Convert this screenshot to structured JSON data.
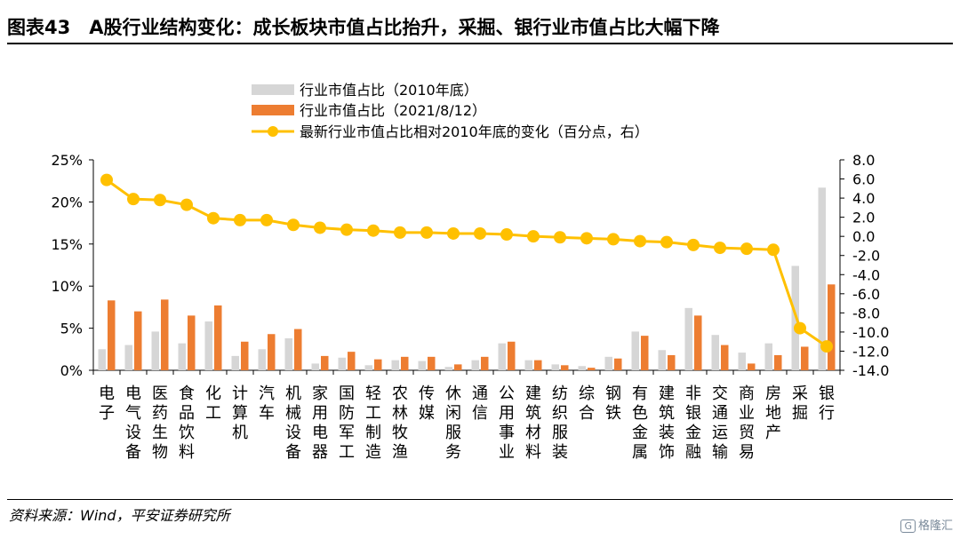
{
  "title": "图表43　A股行业结构变化：成长板块市值占比抬升，采掘、银行业市值占比大幅下降",
  "source": "资料来源：Wind，平安证券研究所",
  "watermark": {
    "icon": "G",
    "text": "格隆汇"
  },
  "colors": {
    "series2010": "#d6d6d6",
    "series2021": "#ed7d31",
    "change": "#ffc000",
    "axis": "#000000"
  },
  "chart_data": {
    "type": "bar",
    "categories": [
      "电子",
      "电气设备",
      "医药生物",
      "食品饮料",
      "化工",
      "计算机",
      "汽车",
      "机械设备",
      "家用电器",
      "国防军工",
      "轻工制造",
      "农林牧渔",
      "传媒",
      "休闲服务",
      "通信",
      "公用事业",
      "建筑材料",
      "纺织服装",
      "综合",
      "钢铁",
      "有色金属",
      "建筑装饰",
      "非银金融",
      "交通运输",
      "商业贸易",
      "房地产",
      "采掘",
      "银行"
    ],
    "series": [
      {
        "name": "行业市值占比（2010年底）",
        "type": "bar",
        "axis": "left",
        "values": [
          2.5,
          3.0,
          4.6,
          3.2,
          5.8,
          1.7,
          2.5,
          3.8,
          0.8,
          1.5,
          0.6,
          1.2,
          1.1,
          0.4,
          1.2,
          3.2,
          1.2,
          0.7,
          0.5,
          1.6,
          4.6,
          2.4,
          7.4,
          4.2,
          2.1,
          3.2,
          12.4,
          21.7
        ]
      },
      {
        "name": "行业市值占比（2021/8/12）",
        "type": "bar",
        "axis": "left",
        "values": [
          8.3,
          7.0,
          8.4,
          6.5,
          7.7,
          3.4,
          4.3,
          4.9,
          1.7,
          2.2,
          1.3,
          1.6,
          1.6,
          0.7,
          1.6,
          3.4,
          1.2,
          0.6,
          0.3,
          1.4,
          4.1,
          1.8,
          6.5,
          3.0,
          0.8,
          1.8,
          2.8,
          10.2
        ]
      },
      {
        "name": "最新行业市值占比相对2010年底的变化（百分点，右）",
        "type": "line",
        "axis": "right",
        "values": [
          5.9,
          3.9,
          3.8,
          3.3,
          1.9,
          1.7,
          1.7,
          1.2,
          0.9,
          0.7,
          0.6,
          0.4,
          0.4,
          0.3,
          0.3,
          0.2,
          0.0,
          -0.1,
          -0.2,
          -0.3,
          -0.5,
          -0.6,
          -0.9,
          -1.2,
          -1.3,
          -1.4,
          -9.6,
          -11.5
        ]
      }
    ],
    "ylim": [
      0,
      25
    ],
    "y_ticks": [
      "0%",
      "5%",
      "10%",
      "15%",
      "20%",
      "25%"
    ],
    "y2lim": [
      -14,
      8
    ],
    "y2_ticks": [
      "8.0",
      "6.0",
      "4.0",
      "2.0",
      "0.0",
      "-2.0",
      "-4.0",
      "-6.0",
      "-8.0",
      "-10.0",
      "-12.0",
      "-14.0"
    ],
    "legend_position": "top-center",
    "grid": false
  }
}
